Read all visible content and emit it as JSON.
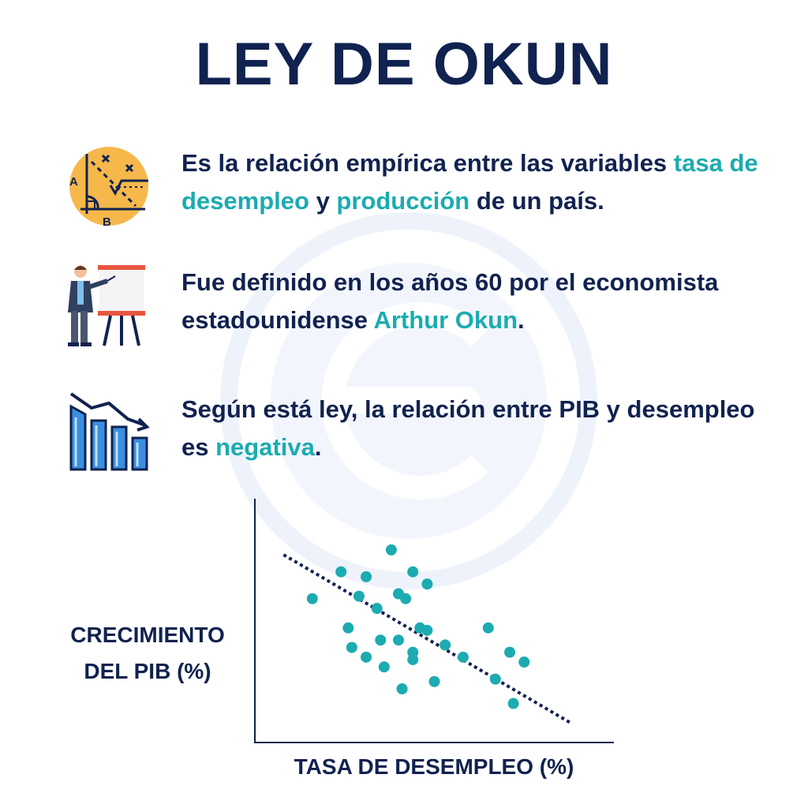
{
  "title": "LEY DE OKUN",
  "items": [
    {
      "icon": "geometry-graph-icon",
      "segments": [
        {
          "text": "Es la relación empírica entre las variables ",
          "hl": false
        },
        {
          "text": "tasa de desempleo",
          "hl": true
        },
        {
          "text": " y ",
          "hl": false
        },
        {
          "text": "producción",
          "hl": true
        },
        {
          "text": " de un país.",
          "hl": false
        }
      ]
    },
    {
      "icon": "presenter-icon",
      "segments": [
        {
          "text": "Fue definido en los años 60 por el economista estadounidense ",
          "hl": false
        },
        {
          "text": "Arthur Okun",
          "hl": true
        },
        {
          "text": ".",
          "hl": false
        }
      ]
    },
    {
      "icon": "declining-bar-chart-icon",
      "segments": [
        {
          "text": "Según está ley, la relación entre PIB y desempleo es ",
          "hl": false
        },
        {
          "text": "negativa",
          "hl": true
        },
        {
          "text": ".",
          "hl": false
        }
      ]
    }
  ],
  "icon_labels": {
    "a": "A",
    "b": "B"
  },
  "colors": {
    "navy": "#10224f",
    "teal": "#1cabb0",
    "orange": "#f6b84b",
    "blue": "#3a8fe0"
  },
  "chart_data": {
    "type": "scatter",
    "xlabel": "TASA DE DESEMPLEO (%)",
    "ylabel_lines": [
      "CRECIMIENTO",
      "DEL PIB (%)"
    ],
    "xlim": [
      0,
      100
    ],
    "ylim": [
      0,
      100
    ],
    "grid": false,
    "trendline": {
      "x": [
        8,
        88
      ],
      "y": [
        77,
        8
      ],
      "style": "dotted"
    },
    "points": [
      {
        "x": 16,
        "y": 59
      },
      {
        "x": 24,
        "y": 70
      },
      {
        "x": 26,
        "y": 47
      },
      {
        "x": 27,
        "y": 39
      },
      {
        "x": 29,
        "y": 60
      },
      {
        "x": 31,
        "y": 35
      },
      {
        "x": 31,
        "y": 68
      },
      {
        "x": 34,
        "y": 55
      },
      {
        "x": 35,
        "y": 42
      },
      {
        "x": 36,
        "y": 31
      },
      {
        "x": 38,
        "y": 79
      },
      {
        "x": 40,
        "y": 61
      },
      {
        "x": 40,
        "y": 42
      },
      {
        "x": 41,
        "y": 22
      },
      {
        "x": 42,
        "y": 59
      },
      {
        "x": 44,
        "y": 70
      },
      {
        "x": 44,
        "y": 37
      },
      {
        "x": 44,
        "y": 34
      },
      {
        "x": 46,
        "y": 47
      },
      {
        "x": 48,
        "y": 46
      },
      {
        "x": 48,
        "y": 65
      },
      {
        "x": 50,
        "y": 25
      },
      {
        "x": 53,
        "y": 40
      },
      {
        "x": 58,
        "y": 35
      },
      {
        "x": 65,
        "y": 47
      },
      {
        "x": 67,
        "y": 26
      },
      {
        "x": 71,
        "y": 37
      },
      {
        "x": 72,
        "y": 16
      },
      {
        "x": 75,
        "y": 33
      }
    ]
  }
}
